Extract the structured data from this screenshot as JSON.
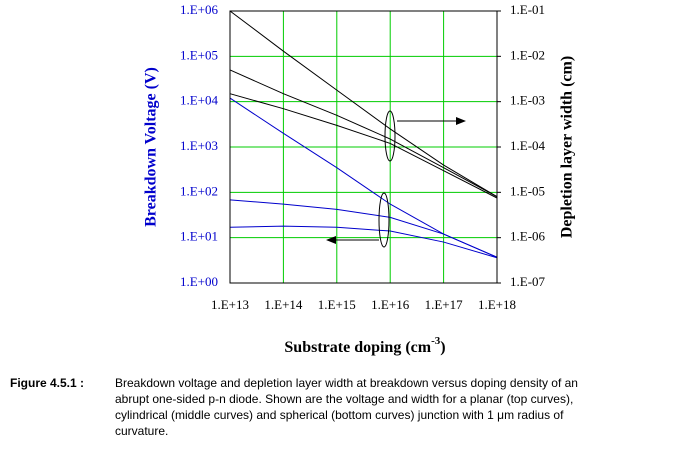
{
  "chart_data": {
    "type": "line",
    "xlabel": [
      "Substrate doping (cm",
      "-3",
      ")"
    ],
    "ylabel": "Breakdown Voltage (V)",
    "y2label": "Depletion layer width (cm)",
    "xscale": "log",
    "yscale": "log",
    "y2scale": "log",
    "grid": true,
    "grid_color": "#00cc00",
    "x": [
      10000000000000.0,
      100000000000000.0,
      1000000000000000.0,
      1e+16,
      1e+17,
      1e+18
    ],
    "xlim": [
      10000000000000.0,
      1e+18
    ],
    "xticks": [
      {
        "value": 10000000000000.0,
        "label": "1.E+13"
      },
      {
        "value": 100000000000000.0,
        "label": "1.E+14"
      },
      {
        "value": 1000000000000000.0,
        "label": "1.E+15"
      },
      {
        "value": 1e+16,
        "label": "1.E+16"
      },
      {
        "value": 1e+17,
        "label": "1.E+17"
      },
      {
        "value": 1e+18,
        "label": "1.E+18"
      }
    ],
    "ylim": [
      1,
      1000000
    ],
    "yticks": [
      {
        "value": 1,
        "label": "1.E+00"
      },
      {
        "value": 10,
        "label": "1.E+01"
      },
      {
        "value": 100,
        "label": "1.E+02"
      },
      {
        "value": 1000,
        "label": "1.E+03"
      },
      {
        "value": 10000,
        "label": "1.E+04"
      },
      {
        "value": 100000,
        "label": "1.E+05"
      },
      {
        "value": 1000000,
        "label": "1.E+06"
      }
    ],
    "y2lim": [
      1e-07,
      0.1
    ],
    "y2ticks": [
      {
        "value": 1e-07,
        "label": "1.E-07"
      },
      {
        "value": 1e-06,
        "label": "1.E-06"
      },
      {
        "value": 1e-05,
        "label": "1.E-05"
      },
      {
        "value": 0.0001,
        "label": "1.E-04"
      },
      {
        "value": 0.001,
        "label": "1.E-03"
      },
      {
        "value": 0.01,
        "label": "1.E-02"
      },
      {
        "value": 0.1,
        "label": "1.E-01"
      }
    ],
    "series": [
      {
        "color": "#0000cc",
        "values": [
          12000,
          2000,
          350,
          55,
          12,
          3.7
        ]
      },
      {
        "color": "#0000cc",
        "values": [
          68,
          55,
          42,
          28,
          12,
          3.7
        ]
      },
      {
        "color": "#0000cc",
        "values": [
          17,
          18,
          17,
          14,
          8,
          3.6
        ]
      },
      {
        "color": "#000000",
        "axis": "y2",
        "values": [
          0.1,
          0.013,
          0.0018,
          0.00025,
          4e-05,
          8e-06
        ]
      },
      {
        "color": "#000000",
        "axis": "y2",
        "values": [
          0.005,
          0.0015,
          0.0005,
          0.00015,
          3.5e-05,
          8e-06
        ]
      },
      {
        "color": "#000000",
        "axis": "y2",
        "values": [
          0.0015,
          0.0007,
          0.0003,
          0.00012,
          3e-05,
          7.5e-06
        ]
      }
    ]
  },
  "caption": {
    "label": "Figure 4.5.1 :",
    "lines": [
      "Breakdown voltage and depletion layer width at breakdown versus doping density of an",
      "abrupt one-sided p-n diode. Shown are the voltage and width for a planar (top curves),",
      "cylindrical (middle curves) and spherical (bottom curves) junction with 1 μm radius of",
      "curvature."
    ]
  }
}
